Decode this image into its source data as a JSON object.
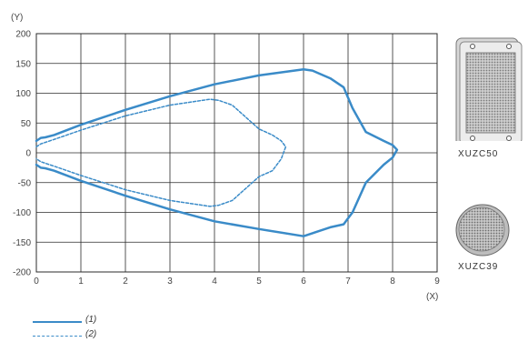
{
  "chart_data": {
    "type": "line",
    "xlabel": "(X)",
    "ylabel": "(Y)",
    "xlim": [
      0,
      9
    ],
    "ylim": [
      -200,
      200
    ],
    "xticks": [
      "0",
      "1",
      "2",
      "3",
      "4",
      "5",
      "6",
      "7",
      "8",
      "9"
    ],
    "yticks": [
      "200",
      "150",
      "100",
      "50",
      "0",
      "-50",
      "-100",
      "-150",
      "-200"
    ],
    "grid": true,
    "series": [
      {
        "name": "(1)",
        "color": "#3a8bc8",
        "style": "solid",
        "x": [
          0,
          0.1,
          0.2,
          0.4,
          1,
          2,
          3,
          4,
          5,
          6,
          6.2,
          6.6,
          6.9,
          7.1,
          7.4,
          7.8,
          8.0,
          8.1,
          8.0,
          7.8,
          7.4,
          7.1,
          6.9,
          6.6,
          6.2,
          6.0,
          5,
          4,
          3,
          2,
          1,
          0.4,
          0.2,
          0.1,
          0
        ],
        "y": [
          20,
          25,
          26,
          30,
          47,
          72,
          95,
          115,
          130,
          140,
          138,
          125,
          110,
          75,
          35,
          20,
          13,
          5,
          -8,
          -20,
          -50,
          -100,
          -120,
          -125,
          -135,
          -140,
          -128,
          -115,
          -95,
          -72,
          -47,
          -30,
          -26,
          -25,
          -20
        ]
      },
      {
        "name": "(2)",
        "color": "#3a8bc8",
        "style": "dashed",
        "x": [
          0,
          0.1,
          0.5,
          1,
          2,
          3,
          3.9,
          4.1,
          4.4,
          4.7,
          5.0,
          5.3,
          5.5,
          5.6,
          5.5,
          5.3,
          5.0,
          4.7,
          4.4,
          4.1,
          3.9,
          3,
          2,
          1,
          0.5,
          0.1,
          0
        ],
        "y": [
          10,
          15,
          25,
          38,
          62,
          80,
          90,
          88,
          80,
          60,
          40,
          30,
          20,
          10,
          -10,
          -30,
          -40,
          -60,
          -80,
          -88,
          -90,
          -80,
          -62,
          -38,
          -25,
          -15,
          -10
        ]
      }
    ]
  },
  "legend": {
    "line1": "(1)",
    "line2": "(2)"
  },
  "products": [
    {
      "name": "XUZC50",
      "icon": "square-reflector-icon"
    },
    {
      "name": "XUZC39",
      "icon": "round-reflector-icon"
    }
  ]
}
